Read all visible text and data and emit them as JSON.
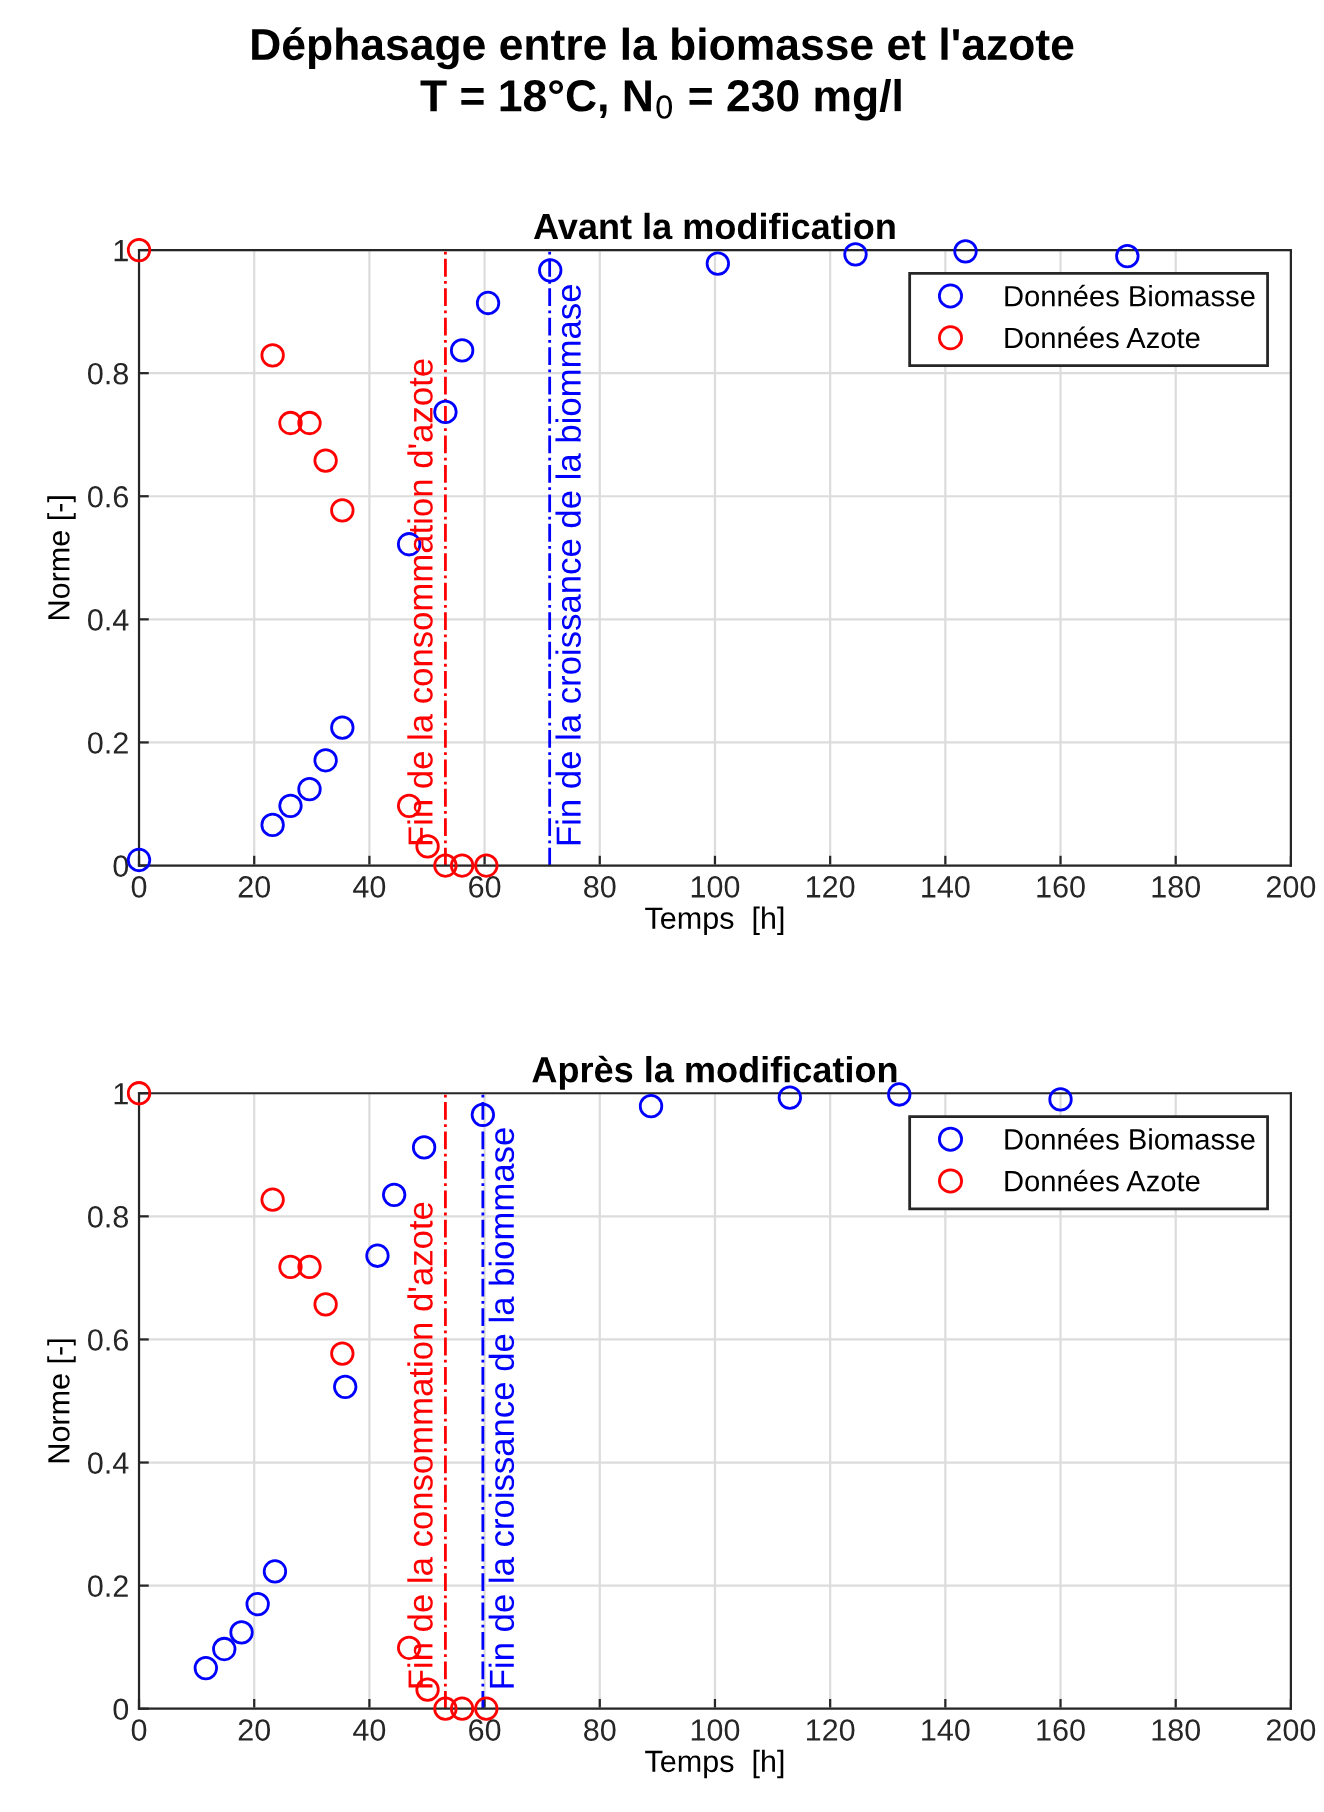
{
  "chart_data": [
    {
      "type": "scatter",
      "title": "Avant la modification",
      "xlabel": "Temps  [h]",
      "ylabel": "Norme [-]",
      "annotations": [
        "Déphasage entre la biomasse et l'azote",
        "T = 18°C, N$_{0}$ = 230 mg/l"
      ],
      "xlim": [
        0,
        200
      ],
      "xticks": [
        0,
        20,
        40,
        60,
        80,
        100,
        120,
        140,
        160,
        180,
        200
      ],
      "ylim": [
        0,
        1
      ],
      "yticks": [
        0,
        0.2,
        0.4,
        0.6,
        0.8,
        1
      ],
      "grid": true,
      "legend": "top right",
      "marker": "circle",
      "series": [
        {
          "name": "Données Biomasse",
          "color": "#0000ff",
          "x": [
            0,
            23.2,
            26.3,
            29.6,
            32.4,
            35.3,
            46.9,
            53.2,
            56.1,
            60.6,
            71.4,
            100.5,
            124.4,
            143.5,
            171.6
          ],
          "values": [
            0.009,
            0.066,
            0.097,
            0.124,
            0.171,
            0.224,
            0.522,
            0.737,
            0.837,
            0.914,
            0.967,
            0.978,
            0.993,
            0.998,
            0.99
          ]
        },
        {
          "name": "Données Azote",
          "color": "#ff0000",
          "x": [
            0,
            23.2,
            26.3,
            29.6,
            32.4,
            35.3,
            46.9,
            50.1,
            53.2,
            56.1,
            60.3
          ],
          "values": [
            1,
            0.829,
            0.719,
            0.719,
            0.658,
            0.577,
            0.097,
            0.031,
            0,
            0,
            0
          ]
        }
      ],
      "ref_lines": [
        {
          "axis": "x",
          "value": 53.2,
          "label": "Fin de la consommation d'azote",
          "color": "#ff0000",
          "line_style": "dashdot"
        },
        {
          "axis": "x",
          "value": 71.3,
          "label": "Fin de la croissance de la biommase",
          "color": "#0000ff",
          "line_style": "dashdot"
        }
      ]
    },
    {
      "type": "scatter",
      "title": "Après la modification",
      "xlabel": "Temps  [h]",
      "ylabel": "Norme [-]",
      "xlim": [
        0,
        200
      ],
      "xticks": [
        0,
        20,
        40,
        60,
        80,
        100,
        120,
        140,
        160,
        180,
        200
      ],
      "ylim": [
        0,
        1
      ],
      "yticks": [
        0,
        0.2,
        0.4,
        0.6,
        0.8,
        1
      ],
      "grid": true,
      "legend": "top right",
      "marker": "circle",
      "series": [
        {
          "name": "Données Biomasse",
          "color": "#0000ff",
          "x": [
            11.6,
            14.8,
            17.8,
            20.6,
            23.6,
            35.8,
            41.4,
            44.3,
            49.5,
            59.7,
            88.9,
            113,
            132,
            160
          ],
          "values": [
            0.066,
            0.097,
            0.124,
            0.17,
            0.223,
            0.523,
            0.736,
            0.835,
            0.912,
            0.965,
            0.979,
            0.993,
            0.998,
            0.99
          ]
        },
        {
          "name": "Données Azote",
          "color": "#ff0000",
          "x": [
            0,
            23.2,
            26.3,
            29.6,
            32.4,
            35.3,
            46.9,
            50.1,
            53.2,
            56.1,
            60.3
          ],
          "values": [
            1,
            0.827,
            0.718,
            0.718,
            0.657,
            0.577,
            0.099,
            0.031,
            0,
            0,
            0
          ]
        }
      ],
      "ref_lines": [
        {
          "axis": "x",
          "value": 53.2,
          "label": "Fin de la consommation d'azote",
          "color": "#ff0000",
          "line_style": "dashdot"
        },
        {
          "axis": "x",
          "value": 59.7,
          "label": "Fin de la croissance de la biommase",
          "color": "#0000ff",
          "line_style": "dashdot"
        }
      ]
    }
  ]
}
